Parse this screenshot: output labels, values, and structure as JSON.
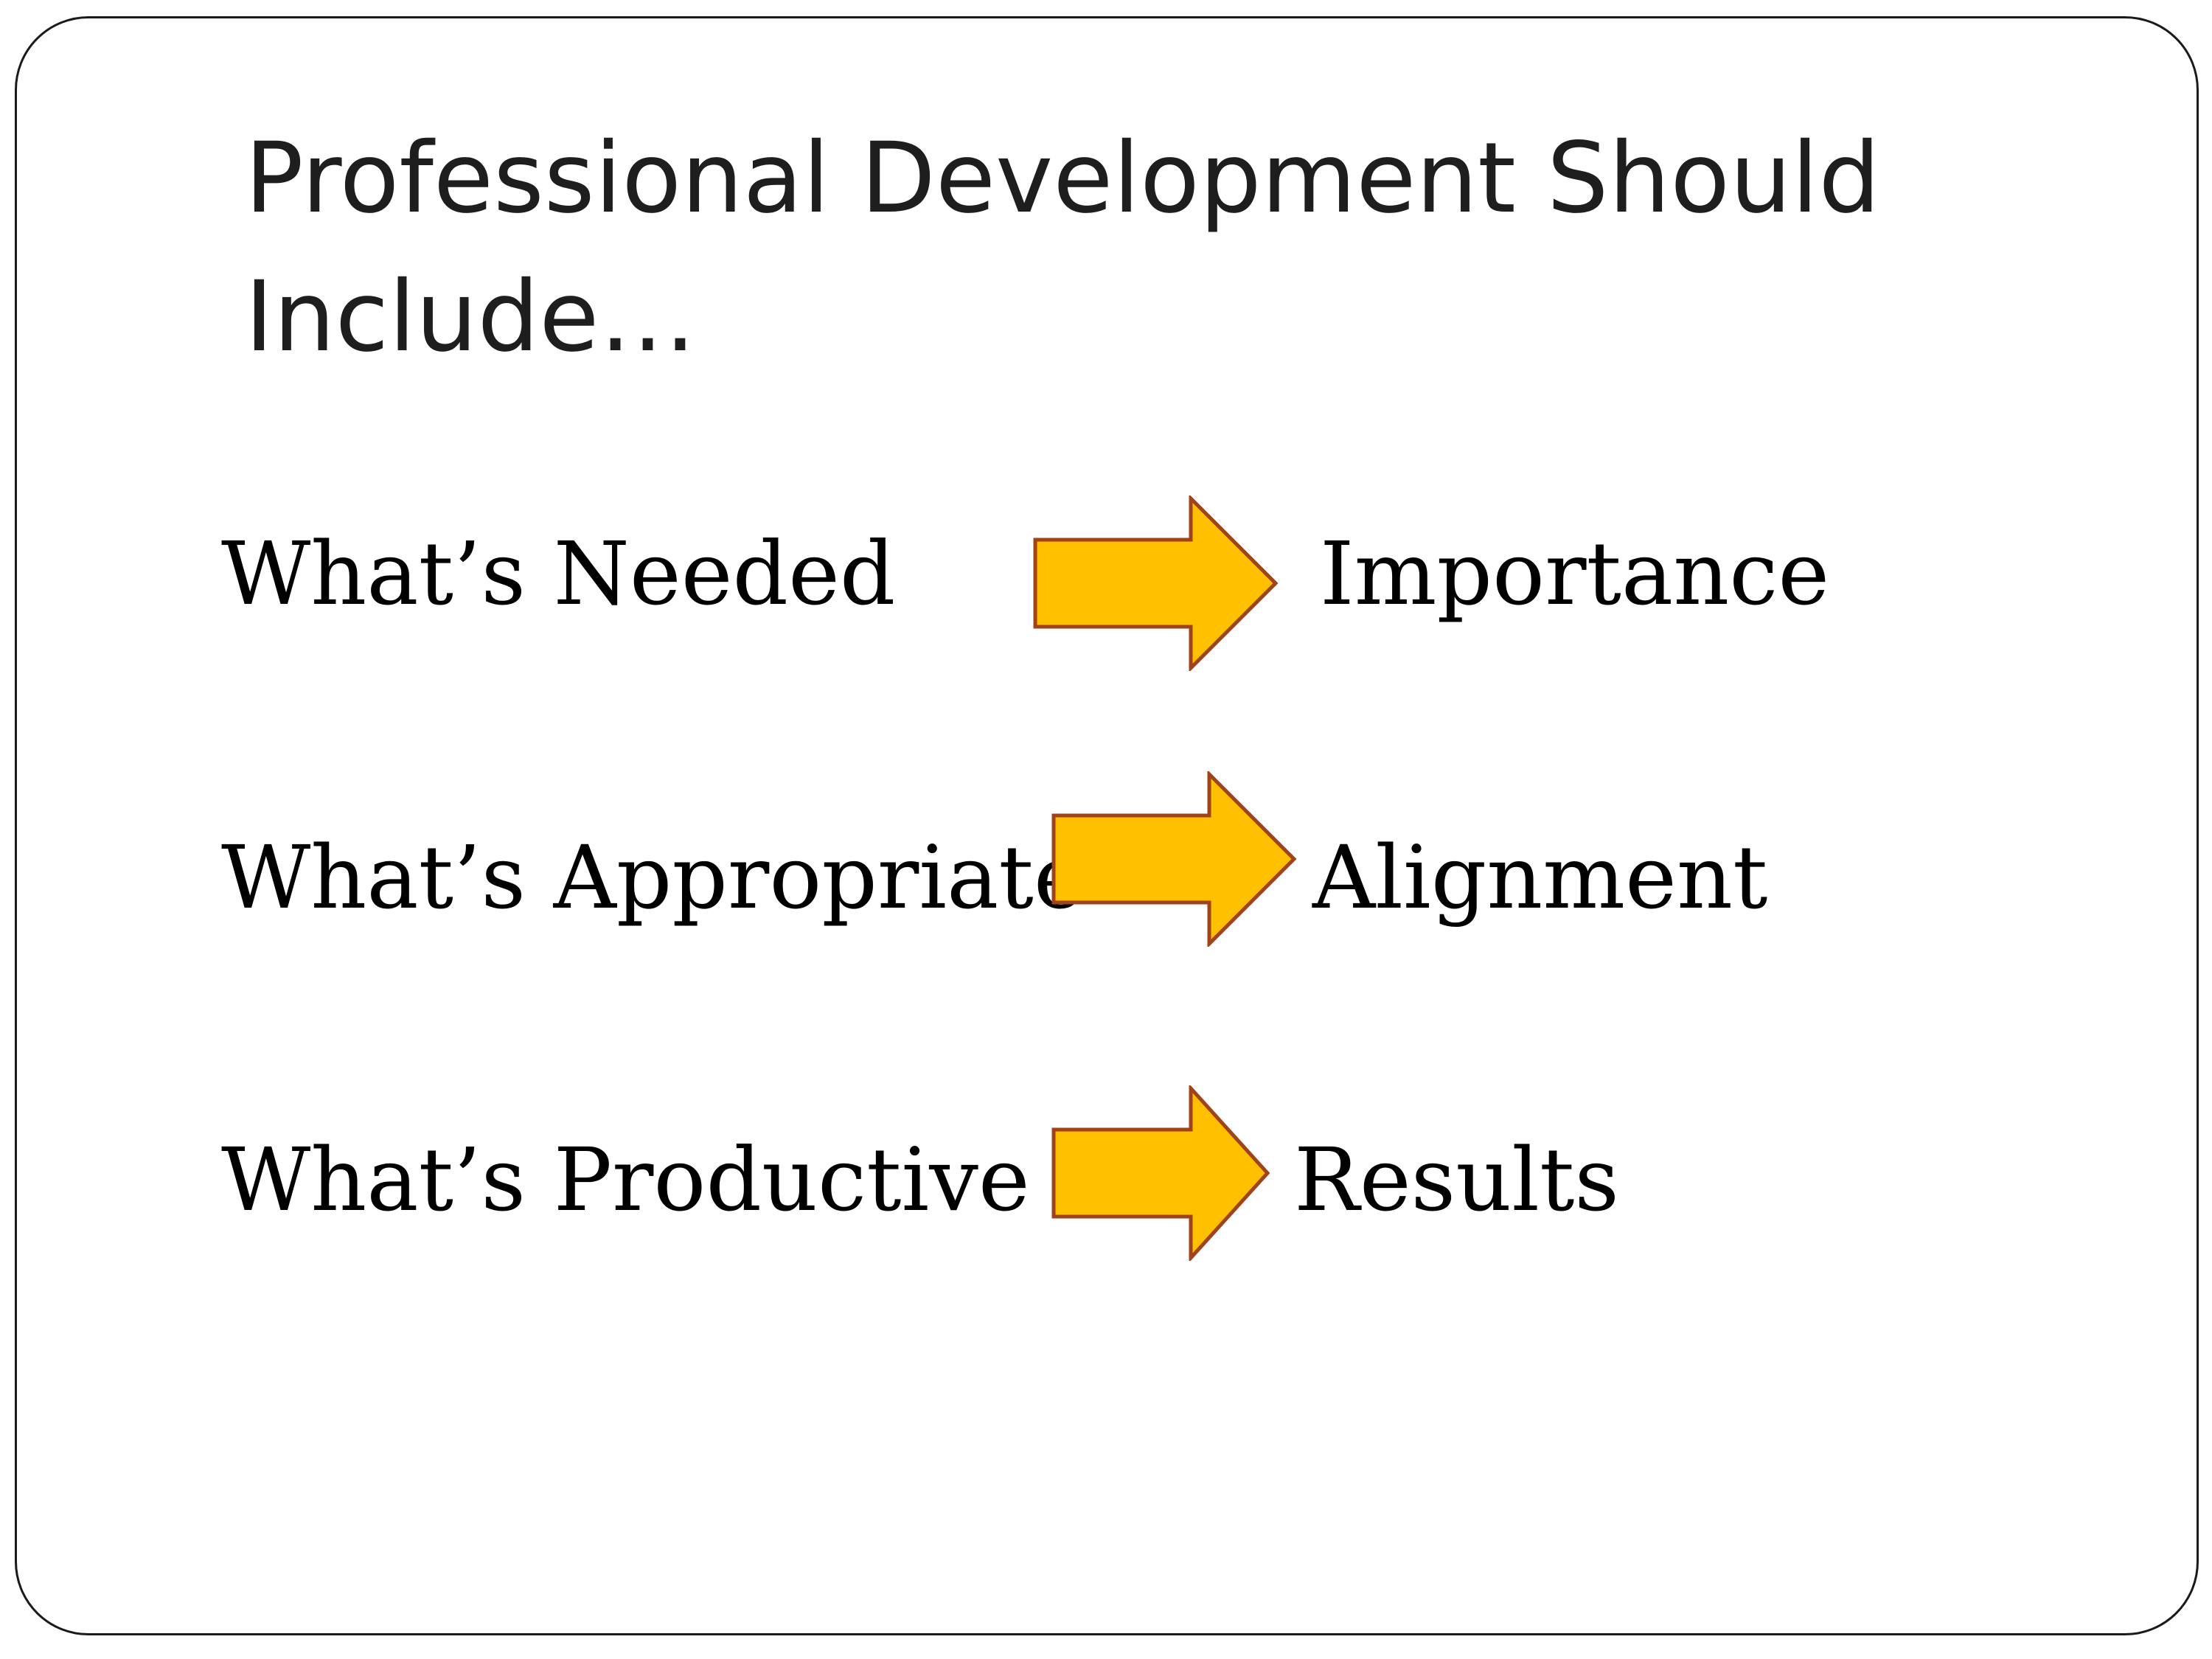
{
  "slide": {
    "title": "Professional Development Should Include…"
  },
  "rows": [
    {
      "left_label": "What’s Needed",
      "right_label": "Importance"
    },
    {
      "left_label": "What’s Appropriate",
      "right_label": "Alignment"
    },
    {
      "left_label": "What’s Productive",
      "right_label": "Results"
    }
  ],
  "colors": {
    "arrow_fill": "#FFC000",
    "arrow_stroke": "#A0421A",
    "frame": "#1a1a1a"
  }
}
